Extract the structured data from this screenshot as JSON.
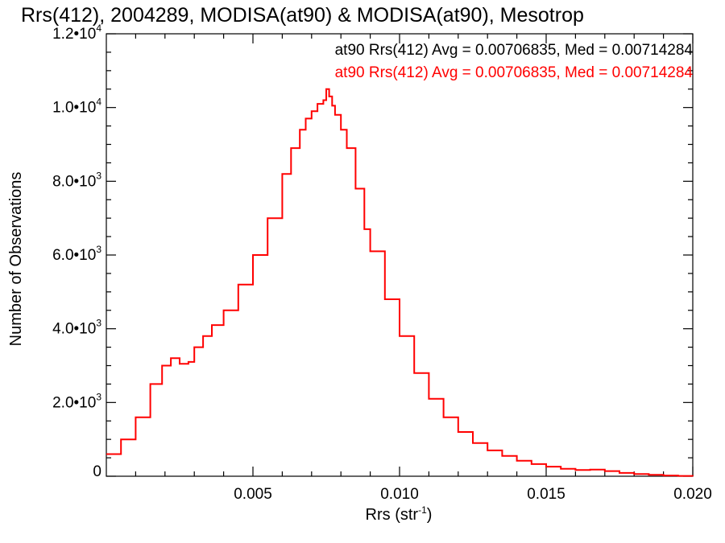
{
  "chart_data": {
    "type": "line",
    "title": "Rrs(412), 2004289, MODISA(at90) & MODISA(at90), Mesotrop",
    "xlabel": "Rrs (str",
    "xlabel_sup": "-1",
    "xlabel_close": ")",
    "ylabel": "Number of Observations",
    "xlim": [
      0.0,
      0.02
    ],
    "ylim": [
      0,
      12000
    ],
    "x_ticks": [
      {
        "value": 0.005,
        "label": "0.005"
      },
      {
        "value": 0.01,
        "label": "0.010"
      },
      {
        "value": 0.015,
        "label": "0.015"
      },
      {
        "value": 0.02,
        "label": "0.020"
      }
    ],
    "y_ticks": [
      {
        "value": 0,
        "mant": "0",
        "exp": ""
      },
      {
        "value": 2000,
        "mant": "2.0•10",
        "exp": "3"
      },
      {
        "value": 4000,
        "mant": "4.0•10",
        "exp": "3"
      },
      {
        "value": 6000,
        "mant": "6.0•10",
        "exp": "3"
      },
      {
        "value": 8000,
        "mant": "8.0•10",
        "exp": "3"
      },
      {
        "value": 10000,
        "mant": "1.0•10",
        "exp": "4"
      },
      {
        "value": 12000,
        "mant": "1.2•10",
        "exp": "4"
      }
    ],
    "legend": [
      {
        "text": "at90 Rrs(412) Avg = 0.00706835, Med = 0.00714284",
        "color": "#000000"
      },
      {
        "text": "at90 Rrs(412) Avg = 0.00706835, Med = 0.00714284",
        "color": "#ff0000"
      }
    ],
    "series": [
      {
        "color": "#ff0000",
        "x": [
          0.0,
          0.0005,
          0.001,
          0.0015,
          0.0019,
          0.0022,
          0.0025,
          0.0028,
          0.003,
          0.0033,
          0.0036,
          0.004,
          0.0045,
          0.005,
          0.0055,
          0.006,
          0.0063,
          0.0066,
          0.0068,
          0.007,
          0.0072,
          0.0074,
          0.0075,
          0.0076,
          0.0077,
          0.0078,
          0.008,
          0.0082,
          0.0085,
          0.0088,
          0.009,
          0.0095,
          0.01,
          0.0105,
          0.011,
          0.0115,
          0.012,
          0.0125,
          0.013,
          0.0135,
          0.014,
          0.0145,
          0.015,
          0.0155,
          0.016,
          0.0165,
          0.017,
          0.0175,
          0.018,
          0.0185,
          0.019,
          0.0195,
          0.02
        ],
        "y": [
          600,
          1000,
          1600,
          2500,
          3000,
          3200,
          3050,
          3100,
          3500,
          3800,
          4100,
          4500,
          5200,
          6000,
          7000,
          8200,
          8900,
          9400,
          9700,
          9900,
          10100,
          10200,
          10500,
          10300,
          10050,
          9800,
          9400,
          8900,
          7800,
          6700,
          6100,
          4800,
          3800,
          2800,
          2100,
          1600,
          1200,
          900,
          700,
          550,
          420,
          330,
          260,
          200,
          170,
          180,
          140,
          90,
          60,
          40,
          20,
          8,
          0
        ]
      }
    ]
  }
}
